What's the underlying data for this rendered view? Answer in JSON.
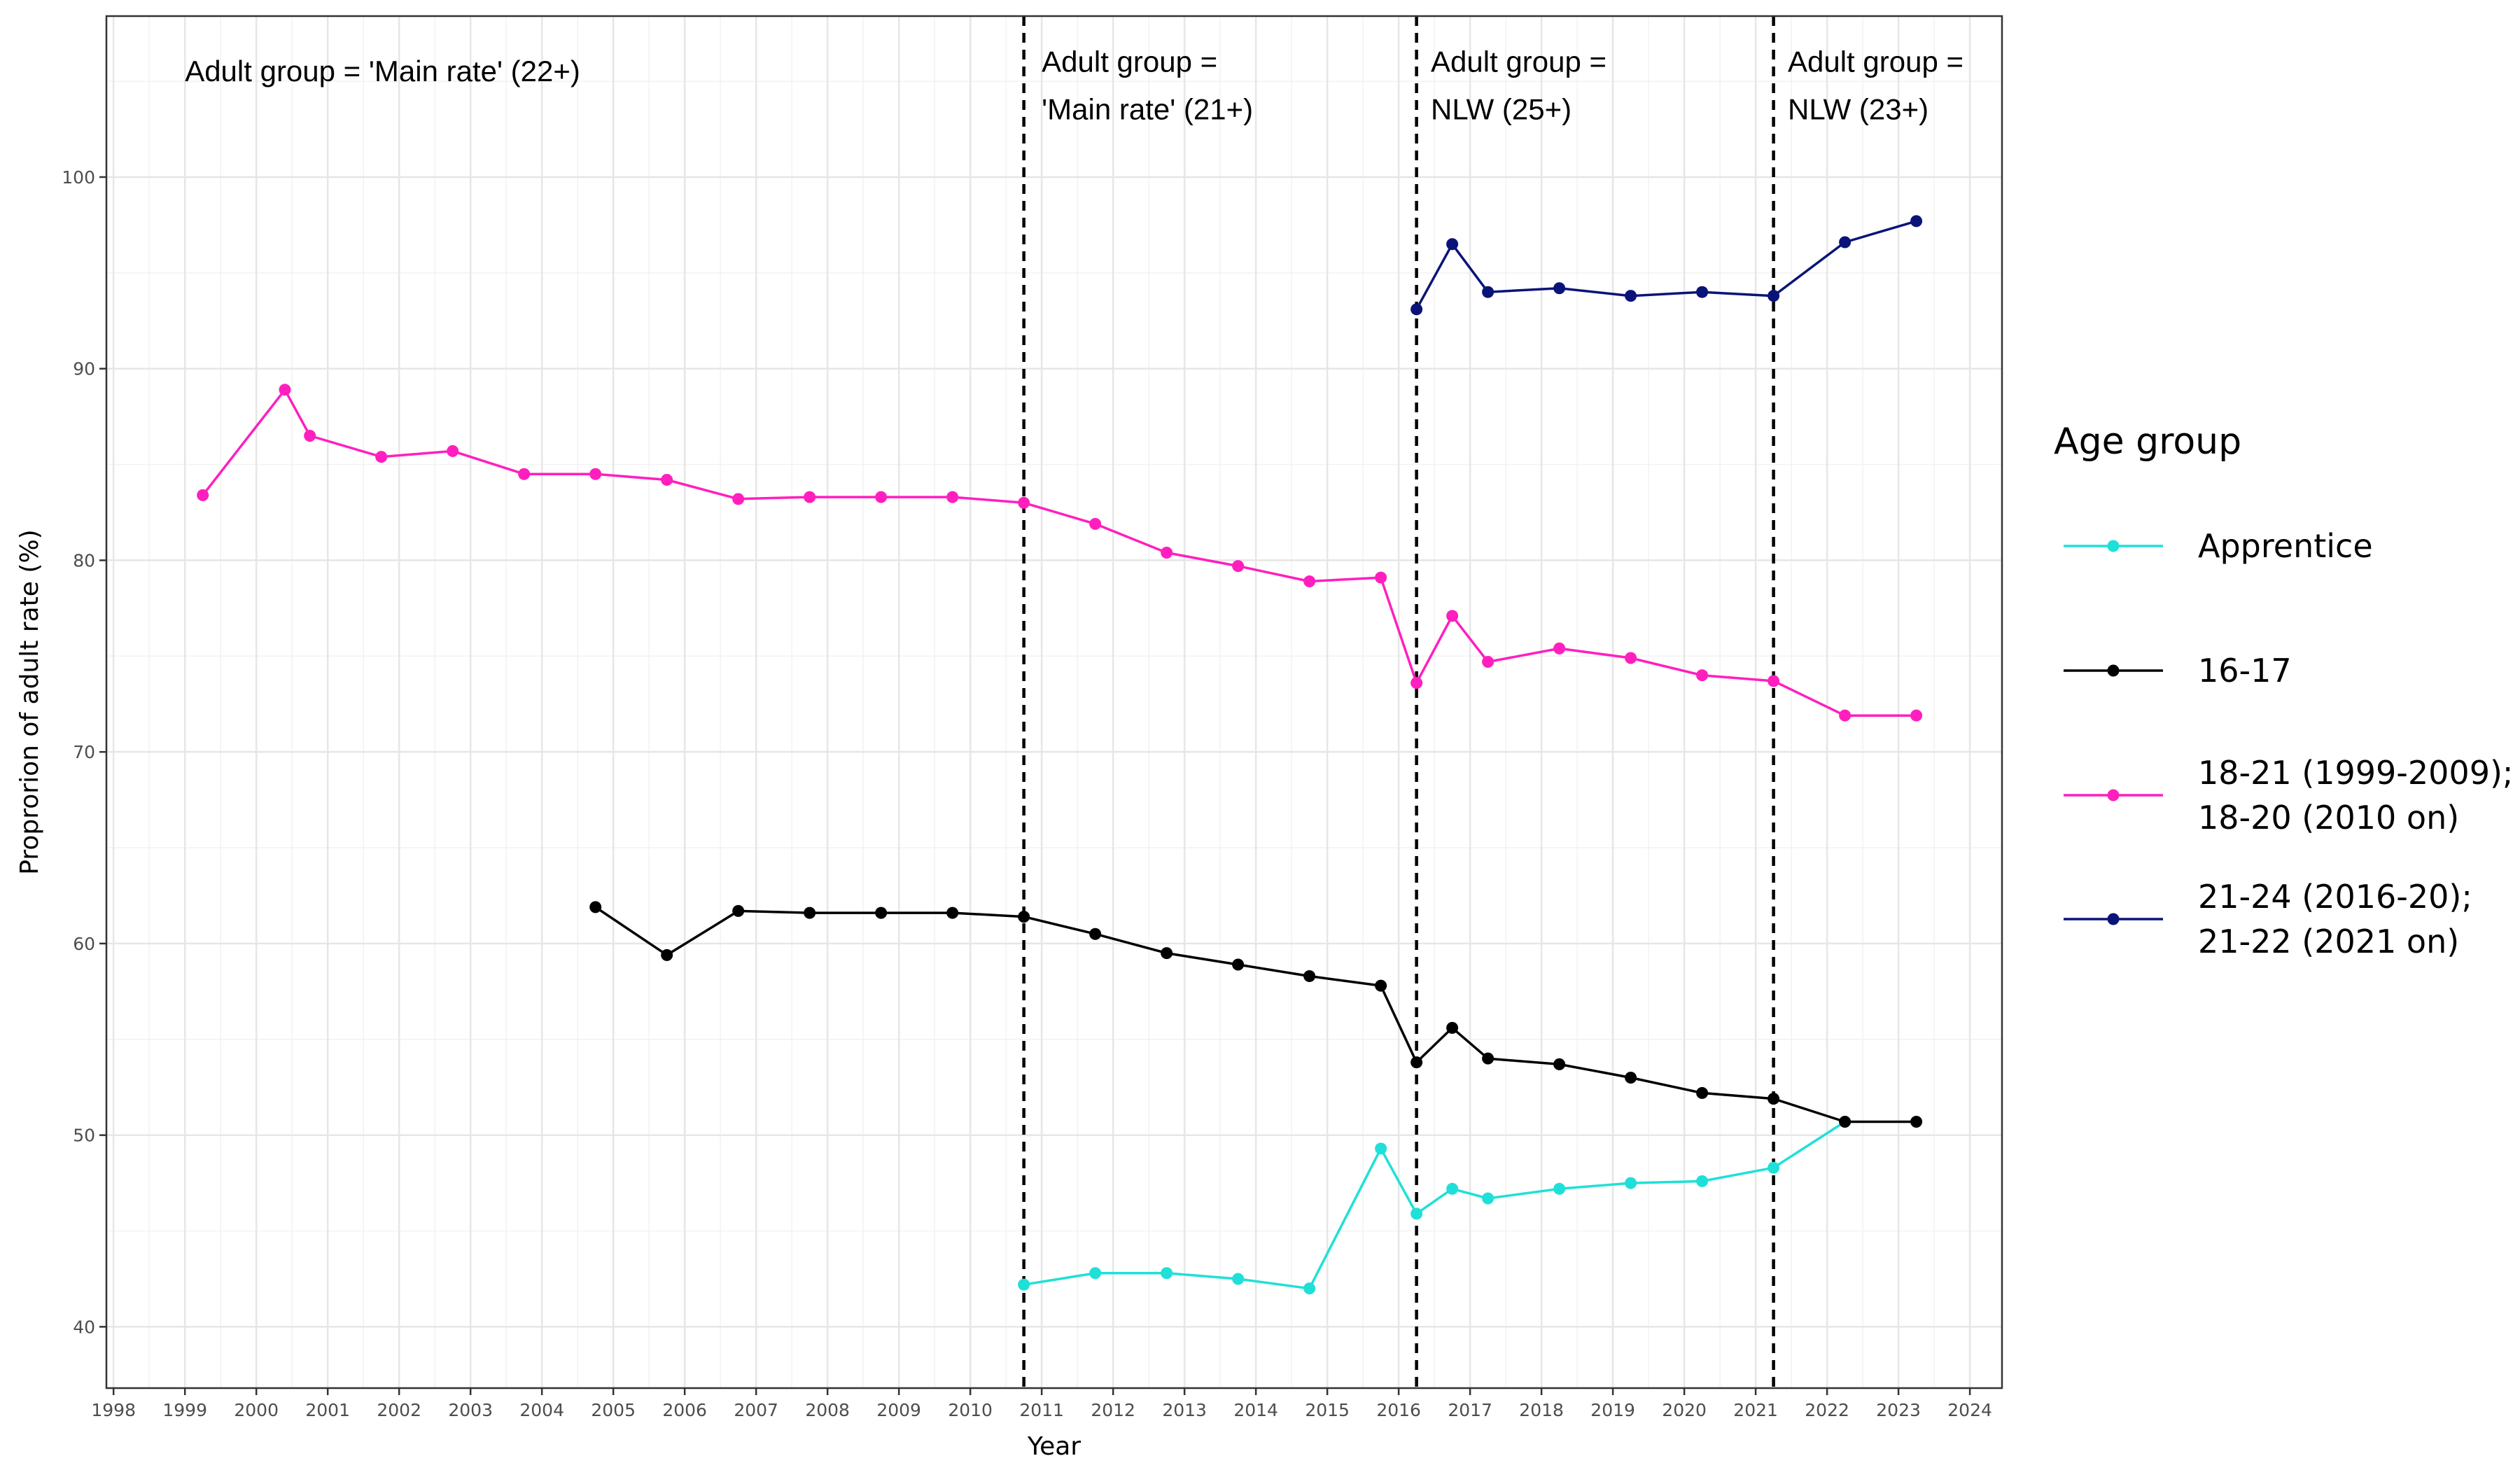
{
  "chart_data": {
    "type": "line",
    "xlabel": "Year",
    "ylabel": "Proprorion of adult rate (%)",
    "xlim": [
      1997.9,
      2024.45
    ],
    "ylim": [
      36.8,
      108.4
    ],
    "x_ticks": [
      1998,
      1999,
      2000,
      2001,
      2002,
      2003,
      2004,
      2005,
      2006,
      2007,
      2008,
      2009,
      2010,
      2011,
      2012,
      2013,
      2014,
      2015,
      2016,
      2017,
      2018,
      2019,
      2020,
      2021,
      2022,
      2023,
      2024
    ],
    "x_tick_labels": [
      "1998",
      "1999",
      "2000",
      "2001",
      "2002",
      "2003",
      "2004",
      "2005",
      "2006",
      "2007",
      "2008",
      "2009",
      "2010",
      "2011",
      "2012",
      "2013",
      "2014",
      "2015",
      "2016",
      "2017",
      "2018",
      "2019",
      "2020",
      "2021",
      "2022",
      "2023",
      "2024"
    ],
    "y_ticks": [
      40,
      50,
      60,
      70,
      80,
      90,
      100
    ],
    "y_tick_labels": [
      "40",
      "50",
      "60",
      "70",
      "80",
      "90",
      "100"
    ],
    "grid": true,
    "legend": {
      "title": "Age group",
      "position": "right",
      "entries": [
        {
          "series": 0,
          "lines": [
            "Apprentice"
          ]
        },
        {
          "series": 1,
          "lines": [
            "16-17"
          ]
        },
        {
          "series": 2,
          "lines": [
            "18-21 (1999-2009);",
            "18-20 (2010 on)"
          ]
        },
        {
          "series": 3,
          "lines": [
            "21-24 (2016-20);",
            "21-22 (2021 on)"
          ]
        }
      ]
    },
    "vlines": [
      2010.75,
      2016.25,
      2021.25
    ],
    "annotations": [
      {
        "x": 1999.0,
        "y": 105.0,
        "lines": [
          "Adult group = 'Main rate' (22+)"
        ]
      },
      {
        "x": 2011.0,
        "y": 105.5,
        "lines": [
          "Adult group =",
          "'Main rate' (21+)"
        ]
      },
      {
        "x": 2016.45,
        "y": 105.5,
        "lines": [
          "Adult group =",
          "NLW (25+)"
        ]
      },
      {
        "x": 2021.45,
        "y": 105.5,
        "lines": [
          "Adult group =",
          "NLW (23+)"
        ]
      }
    ],
    "series": [
      {
        "name": "Apprentice",
        "color": "#1fe0d8",
        "x": [
          2010.75,
          2011.75,
          2012.75,
          2013.75,
          2014.75,
          2015.75,
          2016.25,
          2016.75,
          2017.25,
          2018.25,
          2019.25,
          2020.25,
          2021.25,
          2022.25
        ],
        "y": [
          42.2,
          42.8,
          42.8,
          42.5,
          42.0,
          49.3,
          45.9,
          47.2,
          46.7,
          47.2,
          47.5,
          47.6,
          48.3,
          50.7
        ]
      },
      {
        "name": "16-17",
        "color": "#000000",
        "x": [
          2004.75,
          2005.75,
          2006.75,
          2007.75,
          2008.75,
          2009.75,
          2010.75,
          2011.75,
          2012.75,
          2013.75,
          2014.75,
          2015.75,
          2016.25,
          2016.75,
          2017.25,
          2018.25,
          2019.25,
          2020.25,
          2021.25,
          2022.25,
          2023.25
        ],
        "y": [
          61.9,
          59.4,
          61.7,
          61.6,
          61.6,
          61.6,
          61.4,
          60.5,
          59.5,
          58.9,
          58.3,
          57.8,
          53.8,
          55.6,
          54.0,
          53.7,
          53.0,
          52.2,
          51.9,
          50.7,
          50.7
        ]
      },
      {
        "name": "18-21 (1999-2009); 18-20 (2010 on)",
        "color": "#ff1fbe",
        "x": [
          1999.25,
          2000.4,
          2000.75,
          2001.75,
          2002.75,
          2003.75,
          2004.75,
          2005.75,
          2006.75,
          2007.75,
          2008.75,
          2009.75,
          2010.75,
          2011.75,
          2012.75,
          2013.75,
          2014.75,
          2015.75,
          2016.25,
          2016.75,
          2017.25,
          2018.25,
          2019.25,
          2020.25,
          2021.25,
          2022.25,
          2023.25
        ],
        "y": [
          83.4,
          88.9,
          86.5,
          85.4,
          85.7,
          84.5,
          84.5,
          84.2,
          83.2,
          83.3,
          83.3,
          83.3,
          83.0,
          81.9,
          80.4,
          79.7,
          78.9,
          79.1,
          73.6,
          77.1,
          74.7,
          75.4,
          74.9,
          74.0,
          73.7,
          71.9,
          71.9
        ]
      },
      {
        "name": "21-24 (2016-20); 21-22 (2021 on)",
        "color": "#0a1478",
        "x": [
          2016.25,
          2016.75,
          2017.25,
          2018.25,
          2019.25,
          2020.25,
          2021.25,
          2022.25,
          2023.25
        ],
        "y": [
          93.1,
          96.5,
          94.0,
          94.2,
          93.8,
          94.0,
          93.8,
          96.6,
          97.7
        ]
      }
    ]
  }
}
